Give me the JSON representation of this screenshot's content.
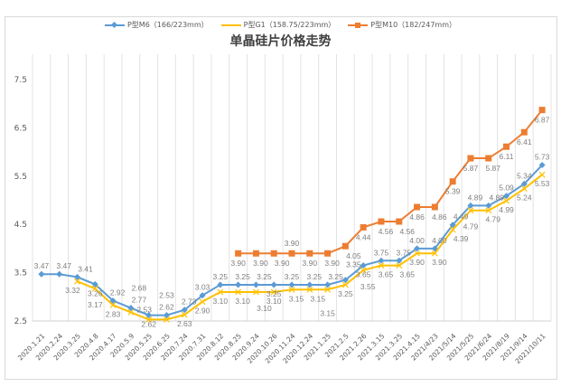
{
  "chart_data": {
    "type": "line",
    "title": "单晶硅片价格走势",
    "legend_position": "top",
    "grid": {
      "vertical": true,
      "horizontal": false
    },
    "ylim": [
      2.5,
      7.5
    ],
    "yticks": [
      "2.5",
      "3.5",
      "4.5",
      "5.5",
      "6.5",
      "7.5"
    ],
    "categories": [
      "2020.1.21",
      "2020.2.24",
      "2020.3.25",
      "2020.4.8",
      "2020.4.17",
      "2020.5.9",
      "2020.5.25",
      "2020.6.25",
      "2020.7.24",
      "2020.7.31",
      "2020.8.12",
      "2020.8.25",
      "2020.9.24",
      "2020.10.26",
      "2020.11.24",
      "2020.12.24",
      "2021.1.25",
      "2021.2.5",
      "2021.2.26",
      "2021.3.15",
      "2021.3.25",
      "2021.4.15",
      "2021/4/23",
      "2021/5/14",
      "2021/5/25",
      "2021/6/24",
      "2021/8/19",
      "2021/9/14",
      "2021/10/11"
    ],
    "series": [
      {
        "name": "P型M6（166/223mm）",
        "color": "#5b9bd5",
        "marker": "diamond",
        "values": [
          3.47,
          3.47,
          3.41,
          3.26,
          2.92,
          2.77,
          2.62,
          2.62,
          2.73,
          3.03,
          3.25,
          3.25,
          3.25,
          3.25,
          3.25,
          3.25,
          3.25,
          3.35,
          3.65,
          3.75,
          3.75,
          4.0,
          4.0,
          4.49,
          4.89,
          4.89,
          5.09,
          5.34,
          5.73
        ]
      },
      {
        "name": "P型G1（158.75/223mm）",
        "color": "#ffc000",
        "marker": "x",
        "values": [
          null,
          null,
          3.32,
          3.17,
          2.83,
          2.68,
          2.53,
          2.53,
          2.63,
          2.9,
          3.1,
          3.1,
          3.1,
          3.1,
          3.15,
          3.15,
          3.15,
          3.25,
          3.55,
          3.65,
          3.65,
          3.9,
          3.9,
          4.39,
          4.79,
          4.79,
          4.99,
          5.24,
          5.53
        ]
      },
      {
        "name": "P型M10（182/247mm）",
        "color": "#ed7d31",
        "marker": "square",
        "values": [
          null,
          null,
          null,
          null,
          null,
          null,
          null,
          null,
          null,
          null,
          null,
          3.9,
          3.9,
          3.9,
          3.9,
          3.9,
          3.9,
          4.05,
          4.44,
          4.56,
          4.56,
          4.86,
          4.86,
          5.39,
          5.87,
          5.87,
          6.11,
          6.41,
          6.87
        ]
      }
    ]
  }
}
